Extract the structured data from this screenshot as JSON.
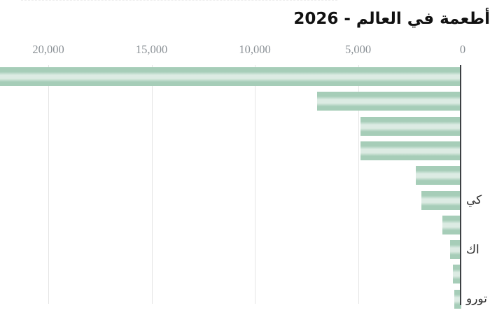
{
  "title": "أطعمة في العالم - 2026",
  "chart_data": {
    "type": "bar",
    "orientation": "horizontal",
    "direction": "rtl",
    "title": "أطعمة في العالم - 2026",
    "x_axis": {
      "position": "top",
      "ticks": [
        "20,000",
        "15,000",
        "10,000",
        "5,000",
        "0"
      ],
      "tick_values": [
        20000,
        15000,
        10000,
        5000,
        0
      ],
      "range": [
        0,
        22400
      ],
      "grid": true
    },
    "rows": [
      {
        "label": "",
        "value": 22400
      },
      {
        "label": "",
        "value": 7000
      },
      {
        "label": "",
        "value": 4900
      },
      {
        "label": "",
        "value": 4900
      },
      {
        "label": "",
        "value": 2210
      },
      {
        "label": "كي",
        "value": 1940
      },
      {
        "label": "",
        "value": 920
      },
      {
        "label": "اك",
        "value": 540
      },
      {
        "label": "",
        "value": 410
      },
      {
        "label": "تورو",
        "value": 340
      }
    ],
    "colors": {
      "bar_edge": "#a6cdb8",
      "bar_center": "#dcebe3",
      "axis_line": "#3d4043",
      "gridline": "#e4e4e4",
      "tick_label": "#8b9196",
      "title": "#111111"
    },
    "legend": null
  }
}
